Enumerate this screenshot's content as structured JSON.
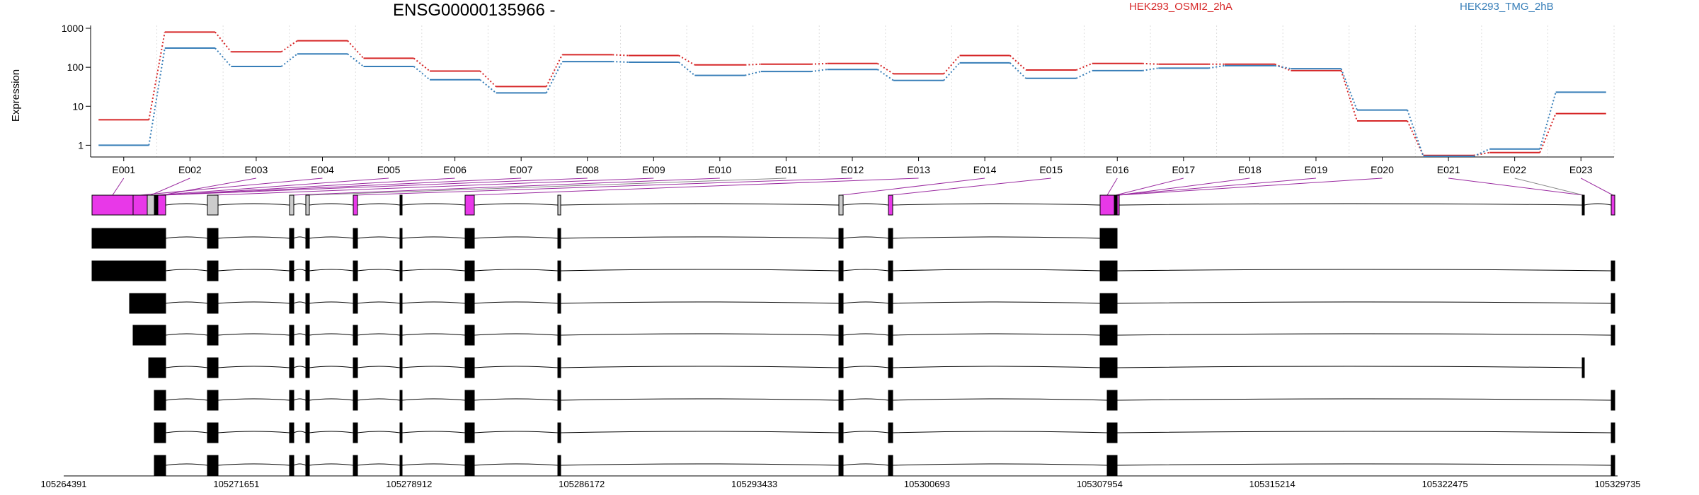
{
  "chart_data": {
    "type": "line",
    "title": "ENSG00000135966 -",
    "ylabel": "Expression",
    "y_scale": "log",
    "ylim": [
      0.5,
      1000
    ],
    "yticks": [
      1,
      10,
      100,
      1000
    ],
    "legend_placement": "top-right",
    "grid": "vertical dotted",
    "categories": [
      "E001",
      "E002",
      "E003",
      "E004",
      "E005",
      "E006",
      "E007",
      "E008",
      "E009",
      "E010",
      "E011",
      "E012",
      "E013",
      "E014",
      "E015",
      "E016",
      "E017",
      "E018",
      "E019",
      "E020",
      "E021",
      "E022",
      "E023"
    ],
    "series": [
      {
        "name": "HEK293_OSMI2_2hA",
        "color": "#d62728",
        "values": [
          4.5,
          800,
          250,
          480,
          170,
          80,
          32,
          210,
          200,
          115,
          120,
          125,
          68,
          200,
          85,
          125,
          120,
          120,
          82,
          4.2,
          0.55,
          0.65,
          6.5
        ]
      },
      {
        "name": "HEK293_TMG_2hB",
        "color": "#377eb8",
        "values": [
          1.0,
          310,
          105,
          220,
          105,
          48,
          22,
          140,
          135,
          62,
          78,
          88,
          46,
          130,
          52,
          82,
          95,
          110,
          92,
          8,
          0.52,
          0.8,
          23
        ]
      }
    ],
    "gene_model": {
      "coordinate_ticks": [
        "105264391",
        "105271651",
        "105278912",
        "105286172",
        "105293433",
        "105300693",
        "105307954",
        "105315214",
        "105322475",
        "105329735"
      ],
      "transcript_count": 9
    }
  },
  "colors": {
    "highlight_exon": "#e838e8",
    "grey_exon": "#cccccc",
    "exon": "#000000",
    "connector": "#9a2aa0"
  }
}
